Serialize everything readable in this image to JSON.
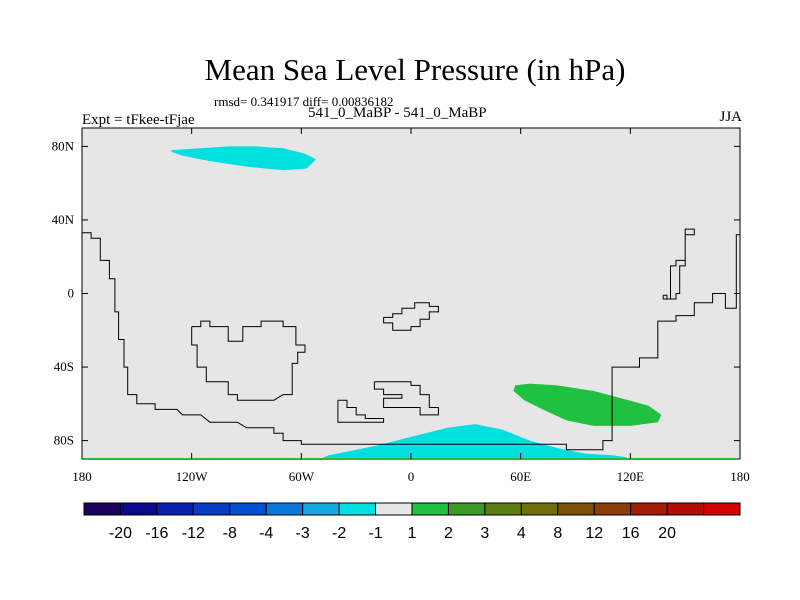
{
  "header": {
    "title": "Mean Sea Level Pressure (in hPa)",
    "stats": "rmsd= 0.341917 diff= 0.00836182",
    "left_label": "Expt = tFkee-tFjae",
    "center_label": "541_0_MaBP - 541_0_MaBP",
    "right_label": "JJA"
  },
  "chart_data": {
    "type": "heatmap",
    "title": "Mean Sea Level Pressure (in hPa)",
    "xlabel": "",
    "ylabel": "",
    "xlim": [
      -180,
      180
    ],
    "ylim": [
      -90,
      90
    ],
    "x_ticks": [
      {
        "value": -180,
        "label": "180"
      },
      {
        "value": -120,
        "label": "120W"
      },
      {
        "value": -60,
        "label": "60W"
      },
      {
        "value": 0,
        "label": "0"
      },
      {
        "value": 60,
        "label": "60E"
      },
      {
        "value": 120,
        "label": "120E"
      },
      {
        "value": 180,
        "label": "180"
      }
    ],
    "y_ticks": [
      {
        "value": 80,
        "label": "80N"
      },
      {
        "value": 40,
        "label": "40N"
      },
      {
        "value": 0,
        "label": "0"
      },
      {
        "value": -40,
        "label": "40S"
      },
      {
        "value": -80,
        "label": "80S"
      }
    ],
    "background_color": "#e6e6e6",
    "regions": [
      {
        "level": "-2 to -1",
        "color": "#00e0e0",
        "points": [
          [
            -131,
            78
          ],
          [
            -115,
            79
          ],
          [
            -100,
            80
          ],
          [
            -85,
            80
          ],
          [
            -70,
            79
          ],
          [
            -58,
            76
          ],
          [
            -52,
            73
          ],
          [
            -57,
            68
          ],
          [
            -70,
            67
          ],
          [
            -90,
            69
          ],
          [
            -110,
            72
          ],
          [
            -125,
            75
          ],
          [
            -131,
            77
          ]
        ]
      },
      {
        "level": "-2 to -1",
        "color": "#00e0e0",
        "points": [
          [
            -50,
            -90
          ],
          [
            -45,
            -88
          ],
          [
            -35,
            -86
          ],
          [
            -20,
            -83
          ],
          [
            0,
            -78
          ],
          [
            20,
            -73
          ],
          [
            35,
            -71
          ],
          [
            50,
            -74
          ],
          [
            65,
            -80
          ],
          [
            80,
            -84
          ],
          [
            95,
            -87
          ],
          [
            110,
            -88
          ],
          [
            118,
            -89
          ],
          [
            118,
            -90
          ]
        ]
      },
      {
        "level": "1 to 2",
        "color": "#20c040",
        "points": [
          [
            57,
            -50
          ],
          [
            65,
            -49
          ],
          [
            80,
            -50
          ],
          [
            100,
            -53
          ],
          [
            115,
            -57
          ],
          [
            130,
            -61
          ],
          [
            137,
            -66
          ],
          [
            135,
            -70
          ],
          [
            120,
            -72
          ],
          [
            100,
            -72
          ],
          [
            85,
            -69
          ],
          [
            72,
            -63
          ],
          [
            62,
            -58
          ],
          [
            56,
            -53
          ]
        ]
      }
    ],
    "colorbar": {
      "colors": [
        "#1a005a",
        "#0a0a8c",
        "#0a20a8",
        "#0a3cc0",
        "#0050d2",
        "#0a78d8",
        "#14a8e0",
        "#00e0e0",
        "#e6e6e6",
        "#20c040",
        "#3c9a28",
        "#5a7d14",
        "#6e6e0a",
        "#7d500a",
        "#8c3c0a",
        "#a01e0a",
        "#b40a0a",
        "#d20000"
      ],
      "labels": [
        "-20",
        "-16",
        "-12",
        "-8",
        "-4",
        "-3",
        "-2",
        "-1",
        "1",
        "2",
        "3",
        "4",
        "8",
        "12",
        "16",
        "20"
      ]
    },
    "coastlines": [
      {
        "points": [
          [
            -180,
            33
          ],
          [
            -175,
            33
          ],
          [
            -175,
            30
          ],
          [
            -170,
            30
          ],
          [
            -170,
            18
          ],
          [
            -165,
            18
          ],
          [
            -165,
            8
          ],
          [
            -162,
            8
          ],
          [
            -162,
            -10
          ],
          [
            -160,
            -10
          ],
          [
            -160,
            -25
          ],
          [
            -157,
            -25
          ],
          [
            -157,
            -40
          ],
          [
            -155,
            -40
          ],
          [
            -155,
            -55
          ],
          [
            -150,
            -55
          ],
          [
            -150,
            -60
          ],
          [
            -140,
            -60
          ],
          [
            -140,
            -63
          ],
          [
            -128,
            -63
          ],
          [
            -125,
            -66
          ],
          [
            -115,
            -66
          ],
          [
            -110,
            -70
          ],
          [
            -95,
            -70
          ],
          [
            -90,
            -73
          ],
          [
            -75,
            -73
          ],
          [
            -75,
            -76
          ],
          [
            -70,
            -76
          ],
          [
            -70,
            -80
          ],
          [
            -60,
            -80
          ],
          [
            -60,
            -82
          ],
          [
            85,
            -82
          ],
          [
            85,
            -85
          ],
          [
            105,
            -85
          ],
          [
            105,
            -80
          ],
          [
            110,
            -80
          ],
          [
            110,
            -40
          ],
          [
            125,
            -40
          ],
          [
            125,
            -35
          ],
          [
            135,
            -35
          ],
          [
            135,
            -15
          ],
          [
            145,
            -15
          ],
          [
            145,
            -12
          ],
          [
            155,
            -12
          ],
          [
            155,
            -5
          ],
          [
            165,
            -5
          ],
          [
            165,
            0
          ],
          [
            172,
            0
          ],
          [
            172,
            -8
          ],
          [
            178,
            -8
          ],
          [
            178,
            32
          ],
          [
            180,
            32
          ]
        ]
      },
      {
        "points": [
          [
            -120,
            -18
          ],
          [
            -120,
            -28
          ],
          [
            -117,
            -28
          ],
          [
            -117,
            -40
          ],
          [
            -112,
            -40
          ],
          [
            -112,
            -48
          ],
          [
            -100,
            -48
          ],
          [
            -100,
            -55
          ],
          [
            -95,
            -55
          ],
          [
            -95,
            -58
          ],
          [
            -75,
            -58
          ],
          [
            -70,
            -55
          ],
          [
            -65,
            -55
          ],
          [
            -65,
            -38
          ],
          [
            -62,
            -38
          ],
          [
            -62,
            -32
          ],
          [
            -58,
            -32
          ],
          [
            -58,
            -28
          ],
          [
            -63,
            -28
          ],
          [
            -63,
            -18
          ],
          [
            -70,
            -18
          ],
          [
            -70,
            -15
          ],
          [
            -82,
            -15
          ],
          [
            -82,
            -18
          ],
          [
            -92,
            -18
          ],
          [
            -92,
            -26
          ],
          [
            -100,
            -26
          ],
          [
            -100,
            -18
          ],
          [
            -110,
            -18
          ],
          [
            -110,
            -15
          ],
          [
            -115,
            -15
          ],
          [
            -115,
            -18
          ],
          [
            -120,
            -18
          ]
        ]
      },
      {
        "points": [
          [
            -15,
            -13
          ],
          [
            -15,
            -16
          ],
          [
            -10,
            -16
          ],
          [
            -10,
            -20
          ],
          [
            0,
            -20
          ],
          [
            0,
            -18
          ],
          [
            5,
            -18
          ],
          [
            5,
            -14
          ],
          [
            10,
            -14
          ],
          [
            10,
            -10
          ],
          [
            15,
            -10
          ],
          [
            15,
            -7
          ],
          [
            10,
            -7
          ],
          [
            10,
            -5
          ],
          [
            2,
            -5
          ],
          [
            2,
            -8
          ],
          [
            -5,
            -8
          ],
          [
            -5,
            -11
          ],
          [
            -10,
            -11
          ],
          [
            -10,
            -13
          ],
          [
            -15,
            -13
          ]
        ]
      },
      {
        "points": [
          [
            -40,
            -58
          ],
          [
            -35,
            -58
          ],
          [
            -35,
            -62
          ],
          [
            -30,
            -62
          ],
          [
            -30,
            -66
          ],
          [
            -25,
            -66
          ],
          [
            -25,
            -68
          ],
          [
            -15,
            -68
          ],
          [
            -15,
            -70
          ],
          [
            -40,
            -70
          ],
          [
            -40,
            -58
          ]
        ]
      },
      {
        "points": [
          [
            -20,
            -48
          ],
          [
            -20,
            -52
          ],
          [
            -15,
            -52
          ],
          [
            -15,
            -55
          ],
          [
            -5,
            -55
          ],
          [
            -5,
            -57
          ],
          [
            -15,
            -57
          ],
          [
            -15,
            -62
          ],
          [
            5,
            -62
          ],
          [
            5,
            -66
          ],
          [
            15,
            -66
          ],
          [
            15,
            -62
          ],
          [
            10,
            -62
          ],
          [
            10,
            -55
          ],
          [
            5,
            -55
          ],
          [
            5,
            -50
          ],
          [
            0,
            -50
          ],
          [
            0,
            -48
          ],
          [
            -20,
            -48
          ]
        ]
      },
      {
        "points": [
          [
            138,
            -1
          ],
          [
            138,
            -3
          ],
          [
            142,
            -3
          ],
          [
            142,
            15
          ],
          [
            145,
            15
          ],
          [
            145,
            18
          ],
          [
            150,
            18
          ],
          [
            150,
            35
          ],
          [
            155,
            35
          ],
          [
            155,
            32
          ],
          [
            150,
            32
          ],
          [
            150,
            15
          ],
          [
            147,
            15
          ],
          [
            147,
            0
          ],
          [
            145,
            0
          ],
          [
            145,
            -3
          ],
          [
            140,
            -3
          ],
          [
            140,
            -1
          ],
          [
            138,
            -1
          ]
        ]
      }
    ]
  }
}
